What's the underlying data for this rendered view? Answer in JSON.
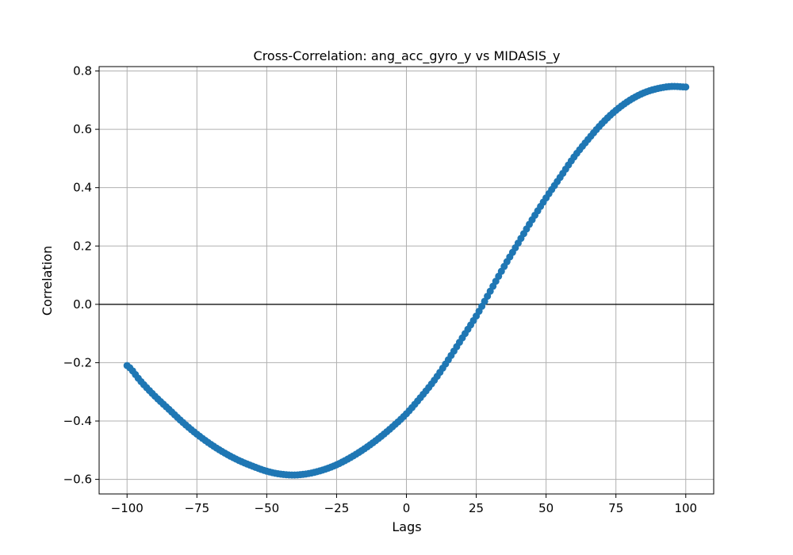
{
  "chart_data": {
    "type": "scatter",
    "title": "Cross-Correlation: ang_acc_gyro_y vs MIDASIS_y",
    "xlabel": "Lags",
    "ylabel": "Correlation",
    "xlim": [
      -110,
      110
    ],
    "ylim": [
      -0.65,
      0.815
    ],
    "xticks": [
      -100,
      -75,
      -50,
      -25,
      0,
      25,
      50,
      75,
      100
    ],
    "xtick_labels": [
      "−100",
      "−75",
      "−50",
      "−25",
      "0",
      "25",
      "50",
      "75",
      "100"
    ],
    "yticks": [
      -0.6,
      -0.4,
      -0.2,
      0.0,
      0.2,
      0.4,
      0.6,
      0.8
    ],
    "ytick_labels": [
      "−0.6",
      "−0.4",
      "−0.2",
      "0.0",
      "0.2",
      "0.4",
      "0.6",
      "0.8"
    ],
    "grid": true,
    "reference_line_y": 0,
    "series": [
      {
        "color": "#1f77b4",
        "x": [
          -100,
          -95,
          -90,
          -85,
          -80,
          -75,
          -70,
          -65,
          -60,
          -55,
          -50,
          -45,
          -40,
          -35,
          -30,
          -25,
          -20,
          -15,
          -10,
          -5,
          0,
          5,
          10,
          15,
          20,
          25,
          30,
          35,
          40,
          45,
          50,
          55,
          60,
          65,
          70,
          75,
          80,
          85,
          90,
          95,
          100
        ],
        "y": [
          -0.21,
          -0.265,
          -0.315,
          -0.36,
          -0.405,
          -0.445,
          -0.48,
          -0.51,
          -0.535,
          -0.555,
          -0.572,
          -0.582,
          -0.585,
          -0.58,
          -0.568,
          -0.55,
          -0.525,
          -0.495,
          -0.46,
          -0.42,
          -0.375,
          -0.32,
          -0.26,
          -0.19,
          -0.115,
          -0.04,
          0.045,
          0.13,
          0.21,
          0.29,
          0.365,
          0.435,
          0.505,
          0.565,
          0.62,
          0.665,
          0.7,
          0.725,
          0.74,
          0.747,
          0.745
        ]
      }
    ]
  }
}
